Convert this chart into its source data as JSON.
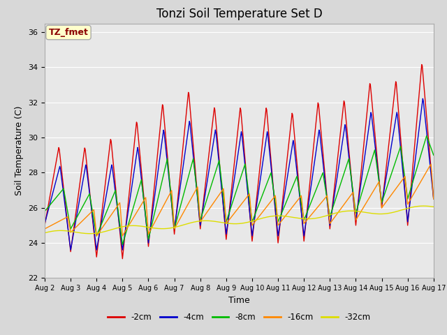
{
  "title": "Tonzi Soil Temperature Set D",
  "xlabel": "Time",
  "ylabel": "Soil Temperature (C)",
  "ylim": [
    22,
    36.5
  ],
  "xlim": [
    0,
    15
  ],
  "series_labels": [
    "-2cm",
    "-4cm",
    "-8cm",
    "-16cm",
    "-32cm"
  ],
  "series_colors": [
    "#dd0000",
    "#0000cc",
    "#00bb00",
    "#ff8800",
    "#dddd00"
  ],
  "xtick_labels": [
    "Aug 2",
    "Aug 3",
    "Aug 4",
    "Aug 5",
    "Aug 6",
    "Aug 7",
    "Aug 8",
    "Aug 9",
    "Aug 10",
    "Aug 11",
    "Aug 12",
    "Aug 13",
    "Aug 14",
    "Aug 15",
    "Aug 16",
    "Aug 17"
  ],
  "ytick_vals": [
    22,
    24,
    26,
    28,
    30,
    32,
    34,
    36
  ],
  "plot_bg_color": "#e8e8e8",
  "fig_bg_color": "#d8d8d8",
  "title_fontsize": 12,
  "annotation_text": "TZ_fmet",
  "annotation_color": "#8b0000",
  "annotation_bg": "#ffffcc",
  "annotation_edge": "#aaaaaa"
}
